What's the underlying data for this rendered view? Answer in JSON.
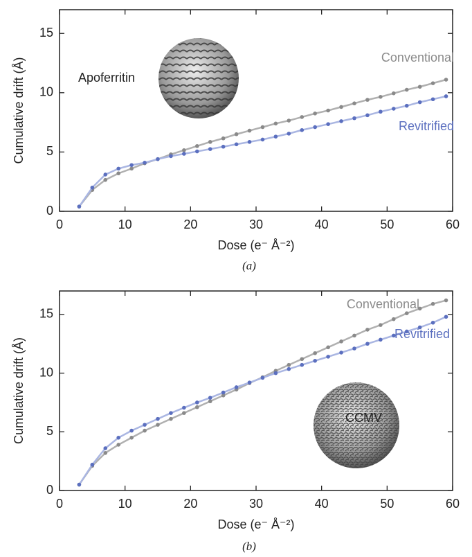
{
  "chart_data": [
    {
      "type": "line",
      "caption": "(a)",
      "annotation": "Apoferritin",
      "xlabel": "Dose (e⁻ Å⁻²)",
      "ylabel": "Cumulative drift (Å)",
      "xlim": [
        0,
        60
      ],
      "ylim": [
        0,
        17
      ],
      "xticks": [
        0,
        10,
        20,
        30,
        40,
        50,
        60
      ],
      "yticks": [
        0,
        5,
        10,
        15
      ],
      "x": [
        3,
        5,
        7,
        9,
        11,
        13,
        15,
        17,
        19,
        21,
        23,
        25,
        27,
        29,
        31,
        33,
        35,
        37,
        39,
        41,
        43,
        45,
        47,
        49,
        51,
        53,
        55,
        57,
        59
      ],
      "series": [
        {
          "name": "Conventional",
          "color": "#8a8a8a",
          "line_color": "#b0b0b0",
          "values": [
            0.4,
            1.8,
            2.65,
            3.2,
            3.6,
            4.05,
            4.4,
            4.8,
            5.15,
            5.5,
            5.85,
            6.15,
            6.5,
            6.8,
            7.1,
            7.4,
            7.65,
            7.95,
            8.25,
            8.5,
            8.8,
            9.1,
            9.4,
            9.65,
            9.95,
            10.25,
            10.5,
            10.8,
            11.1
          ]
        },
        {
          "name": "Revitrified",
          "color": "#5b6fbf",
          "line_color": "#aab6e2",
          "values": [
            0.4,
            2.0,
            3.1,
            3.6,
            3.9,
            4.1,
            4.4,
            4.65,
            4.85,
            5.05,
            5.25,
            5.45,
            5.65,
            5.85,
            6.05,
            6.3,
            6.55,
            6.85,
            7.1,
            7.35,
            7.6,
            7.85,
            8.1,
            8.4,
            8.65,
            8.9,
            9.2,
            9.45,
            9.7
          ]
        }
      ]
    },
    {
      "type": "line",
      "caption": "(b)",
      "annotation": "CCMV",
      "xlabel": "Dose (e⁻ Å⁻²)",
      "ylabel": "Cumulative drift (Å)",
      "xlim": [
        0,
        60
      ],
      "ylim": [
        0,
        17
      ],
      "xticks": [
        0,
        10,
        20,
        30,
        40,
        50,
        60
      ],
      "yticks": [
        0,
        5,
        10,
        15
      ],
      "x": [
        3,
        5,
        7,
        9,
        11,
        13,
        15,
        17,
        19,
        21,
        23,
        25,
        27,
        29,
        31,
        33,
        35,
        37,
        39,
        41,
        43,
        45,
        47,
        49,
        51,
        53,
        55,
        57,
        59
      ],
      "series": [
        {
          "name": "Conventional",
          "color": "#8a8a8a",
          "line_color": "#b0b0b0",
          "values": [
            0.5,
            2.1,
            3.2,
            3.9,
            4.5,
            5.1,
            5.6,
            6.1,
            6.6,
            7.1,
            7.6,
            8.1,
            8.6,
            9.15,
            9.65,
            10.2,
            10.7,
            11.2,
            11.7,
            12.2,
            12.7,
            13.2,
            13.7,
            14.1,
            14.6,
            15.1,
            15.5,
            15.9,
            16.2
          ]
        },
        {
          "name": "Revitrified",
          "color": "#5b6fbf",
          "line_color": "#aab6e2",
          "values": [
            0.5,
            2.2,
            3.6,
            4.5,
            5.1,
            5.6,
            6.1,
            6.6,
            7.05,
            7.5,
            7.9,
            8.35,
            8.8,
            9.2,
            9.6,
            10.0,
            10.35,
            10.7,
            11.05,
            11.4,
            11.75,
            12.1,
            12.5,
            12.85,
            13.2,
            13.55,
            13.9,
            14.3,
            14.8
          ]
        }
      ]
    }
  ]
}
